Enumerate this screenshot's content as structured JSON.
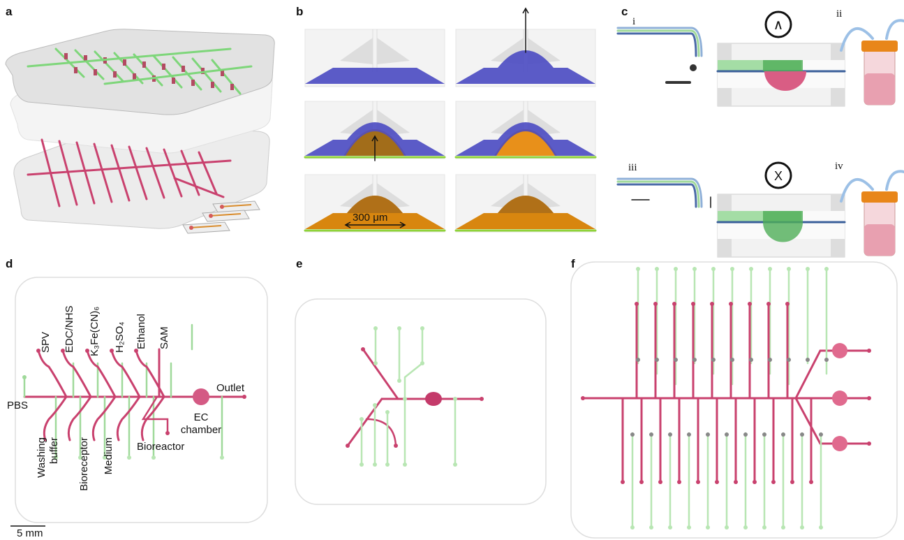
{
  "panels": {
    "a": {
      "label": "a"
    },
    "b": {
      "label": "b",
      "dimension": "300 μm"
    },
    "c": {
      "label": "c",
      "steps": [
        "i",
        "ii",
        "iii",
        "iv"
      ],
      "symbols": [
        "∧",
        "X"
      ]
    },
    "d": {
      "label": "d",
      "top_labels": [
        "SPV",
        "EDC/NHS",
        "K₃Fe(CN)₆",
        "H₂SO₄",
        "Ethanol",
        "SAM"
      ],
      "inlet": "PBS",
      "outlet": "Outlet",
      "chamber": [
        "EC",
        "chamber"
      ],
      "washing_buffer": [
        "Washing",
        "buffer"
      ],
      "bioreceptor": "Bioreceptor",
      "medium": "Medium",
      "bioreactor": "Bioreactor",
      "scale_bar": "5 mm"
    },
    "e": {
      "label": "e"
    },
    "f": {
      "label": "f"
    }
  }
}
